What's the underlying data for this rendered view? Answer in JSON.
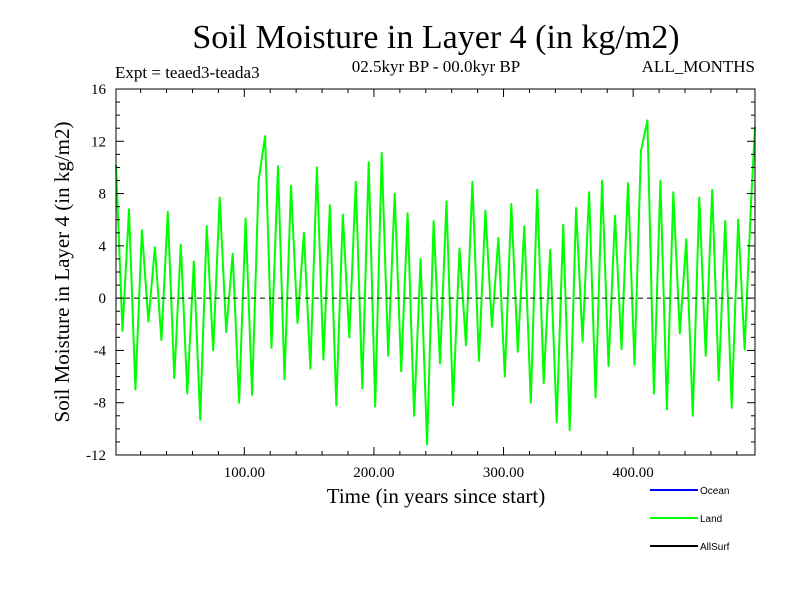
{
  "chart_data": {
    "type": "line",
    "title": "Soil Moisture in Layer 4 (in kg/m2)",
    "subtitle_left": "Expt = teaed3-teada3",
    "subtitle_center": "02.5kyr BP - 00.0kyr BP",
    "subtitle_right": "ALL_MONTHS",
    "xlabel": "Time (in years since start)",
    "ylabel": "Soil Moisture in Layer 4 (in kg/m2)",
    "xlim": [
      1,
      494
    ],
    "ylim": [
      -12,
      16
    ],
    "xticks": [
      100,
      200,
      300,
      400
    ],
    "xtick_labels": [
      "100.00",
      "200.00",
      "300.00",
      "400.00"
    ],
    "yticks": [
      -12,
      -8,
      -4,
      0,
      4,
      8,
      12,
      16
    ],
    "ytick_labels": [
      "-12",
      "-8",
      "-4",
      "0",
      "4",
      "8",
      "12",
      "16"
    ],
    "zero_line": true,
    "grid": false,
    "legend_position": "bottom-right",
    "series": [
      {
        "name": "Ocean",
        "color": "#0000ff",
        "values": []
      },
      {
        "name": "Land",
        "color": "#00ff00",
        "x": [
          1,
          6,
          11,
          16,
          21,
          26,
          31,
          36,
          41,
          46,
          51,
          56,
          61,
          66,
          71,
          76,
          81,
          86,
          91,
          96,
          101,
          106,
          111,
          116,
          121,
          126,
          131,
          136,
          141,
          146,
          151,
          156,
          161,
          166,
          171,
          176,
          181,
          186,
          191,
          196,
          201,
          206,
          211,
          216,
          221,
          226,
          231,
          236,
          241,
          246,
          251,
          256,
          261,
          266,
          271,
          276,
          281,
          286,
          291,
          296,
          301,
          306,
          311,
          316,
          321,
          326,
          331,
          336,
          341,
          346,
          351,
          356,
          361,
          366,
          371,
          376,
          381,
          386,
          391,
          396,
          401,
          406,
          411,
          416,
          421,
          426,
          431,
          436,
          441,
          446,
          451,
          456,
          461,
          466,
          471,
          476,
          481,
          486,
          491,
          494
        ],
        "values": [
          10.2,
          -2.5,
          6.8,
          -7.0,
          5.2,
          -1.8,
          3.9,
          -3.2,
          6.6,
          -6.1,
          4.1,
          -7.3,
          2.8,
          -9.3,
          5.5,
          -4.0,
          7.7,
          -2.6,
          3.4,
          -8.0,
          6.1,
          -7.4,
          9.0,
          12.4,
          -3.8,
          10.1,
          -6.2,
          8.6,
          -1.9,
          5.0,
          -5.4,
          10.0,
          -4.7,
          7.1,
          -8.2,
          6.4,
          -3.0,
          8.9,
          -6.9,
          10.4,
          -8.3,
          11.1,
          -4.4,
          8.0,
          -5.6,
          6.5,
          -9.0,
          3.0,
          -11.2,
          5.9,
          -5.0,
          7.4,
          -8.2,
          3.8,
          -3.6,
          8.9,
          -4.8,
          6.7,
          -2.2,
          4.6,
          -6.0,
          7.2,
          -4.1,
          5.5,
          -8.0,
          8.3,
          -6.5,
          3.7,
          -9.5,
          5.6,
          -10.1,
          6.9,
          -3.3,
          8.1,
          -7.6,
          9.0,
          -5.2,
          6.3,
          -3.9,
          8.8,
          -5.1,
          11.2,
          13.6,
          -7.3,
          9.0,
          -8.5,
          8.1,
          -2.7,
          4.5,
          -9.0,
          7.7,
          -4.4,
          8.3,
          -6.3,
          5.9,
          -8.4,
          6.0,
          -3.9,
          7.4,
          13.1
        ]
      },
      {
        "name": "AllSurf",
        "color": "#000000",
        "values": []
      }
    ]
  }
}
